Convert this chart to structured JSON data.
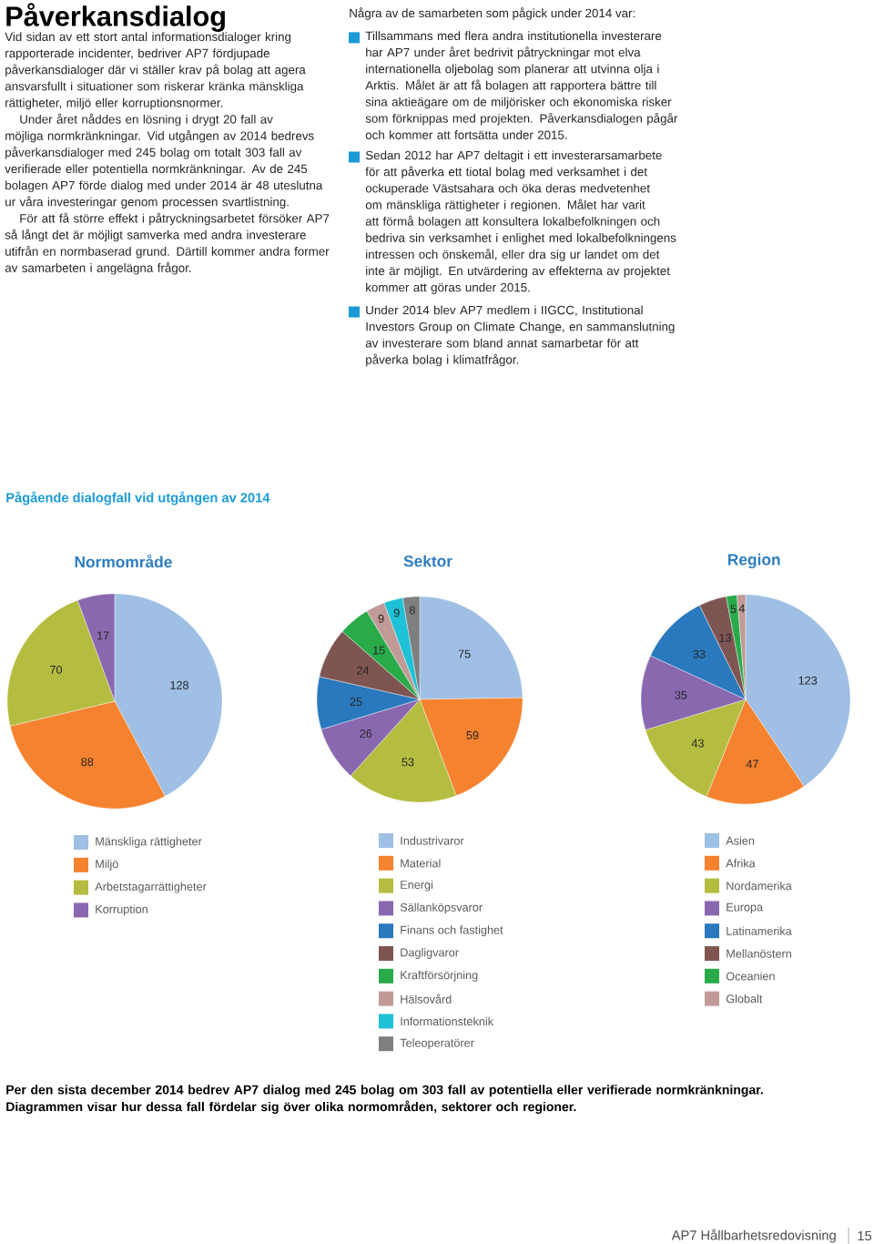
{
  "chart_data": [
    {
      "type": "other",
      "title": "Påverkansdialog",
      "annotations": [
        "Vid sidan av ett stort antal informationsdialoger kring rapporterade incidenter, bedriver AP7 fördjupade påverkansdialoger där vi ställer krav på bolag att agera ansvarsfullt i situationer som riskerar kränka mänskliga rättigheter, miljö eller korruptionsnormer.",
        "Under året nåddes en lösning i drygt 20 fall av möjliga normkränkningar. Vid utgången av 2014 bedrevs påverkansdialoger med 245 bolag om totalt 303 fall av verifierade eller potentiella normkränkningar. Av de 245 bolagen AP7 förde dialog med under 2014 är 48 uteslutna ur våra investeringar genom processen svartlistning.",
        "För att få större effekt i påtryckningsarbetet försöker AP7 så långt det är möjligt samverka med andra investerare utifrån en normbaserad grund. Därtill kommer andra former av samarbeten i angelägna frågor.",
        "Några av de samarbeten som pågick under 2014 var:",
        "Tillsammans med flera andra institutionella investerare har AP7 under året bedrivit påtryckningar mot elva internationella oljebolag som planerar att utvinna olja i Arktis. Målet är att få bolagen att rapportera bättre till sina aktieägare om de miljörisker och ekonomiska risker som förknippas med projekten. Påverkansdialogen pågår och kommer att fortsätta under 2015.",
        "Sedan 2012 har AP7 deltagit i ett investerarsamarbete för att påverka ett tiotal bolag med verksamhet i det ockuperade Västsahara och öka deras medvetenhet om mänskliga rättigheter i regionen. Målet har varit att förmå bolagen att konsultera lokalbefolkningen och bedriva sin verksamhet i enlighet med lokalbefolkningens intressen och önskemål, eller dra sig ur landet om det inte är möjligt. En utvärdering av effekterna av projektet kommer att göras under 2015.",
        "Under 2014 blev AP7 medlem i IIGCC, Institutional Investors Group on Climate Change, en sammanslutning av investerare som bland annat samarbetar för att påverka bolag i klimatfrågor.",
        "Pågående dialogfall vid utgången av 2014",
        "Per den sista december 2014 bedrev AP7 dialog med 245 bolag om 303 fall av potentiella eller verifierade normkränkningar. Diagrammen visar hur dessa fall fördelar sig över olika normområden, sektorer och regioner.",
        "AP7 Hållbarhetsredovisning",
        "15"
      ]
    },
    {
      "type": "pie",
      "title": "Normområde",
      "data_labels": true,
      "legend": "bottom",
      "categories": [
        "Mänskliga rättigheter",
        "Miljö",
        "Arbetstagarrättigheter",
        "Korruption"
      ],
      "values": [
        128,
        88,
        70,
        17
      ],
      "colors": [
        "#9fbfe4",
        "#f5822f",
        "#b4bd3f",
        "#8a68b0"
      ]
    },
    {
      "type": "pie",
      "title": "Sektor",
      "data_labels": true,
      "legend": "bottom",
      "categories": [
        "Industrivaror",
        "Material",
        "Energi",
        "Sällanköpsvaror",
        "Finans och fastighet",
        "Dagligvaror",
        "Kraftförsörjning",
        "Hälsovård",
        "Informationsteknik",
        "Teleoperatörer"
      ],
      "values": [
        75,
        59,
        53,
        26,
        25,
        24,
        15,
        9,
        9,
        8
      ],
      "colors": [
        "#9fbfe4",
        "#f5822f",
        "#b4bd3f",
        "#8a68b0",
        "#2a79be",
        "#7f5552",
        "#2aab4a",
        "#c19a97",
        "#1ec1d5",
        "#7d7f81"
      ]
    },
    {
      "type": "pie",
      "title": "Region",
      "data_labels": true,
      "legend": "bottom",
      "categories": [
        "Asien",
        "Afrika",
        "Nordamerika",
        "Europa",
        "Latinamerika",
        "Mellanöstern",
        "Oceanien",
        "Globalt"
      ],
      "values": [
        123,
        47,
        43,
        35,
        33,
        13,
        5,
        4
      ],
      "colors": [
        "#9fbfe4",
        "#f5822f",
        "#b4bd3f",
        "#8a68b0",
        "#2a79be",
        "#7f5552",
        "#2aab4a",
        "#c19a97"
      ]
    }
  ]
}
